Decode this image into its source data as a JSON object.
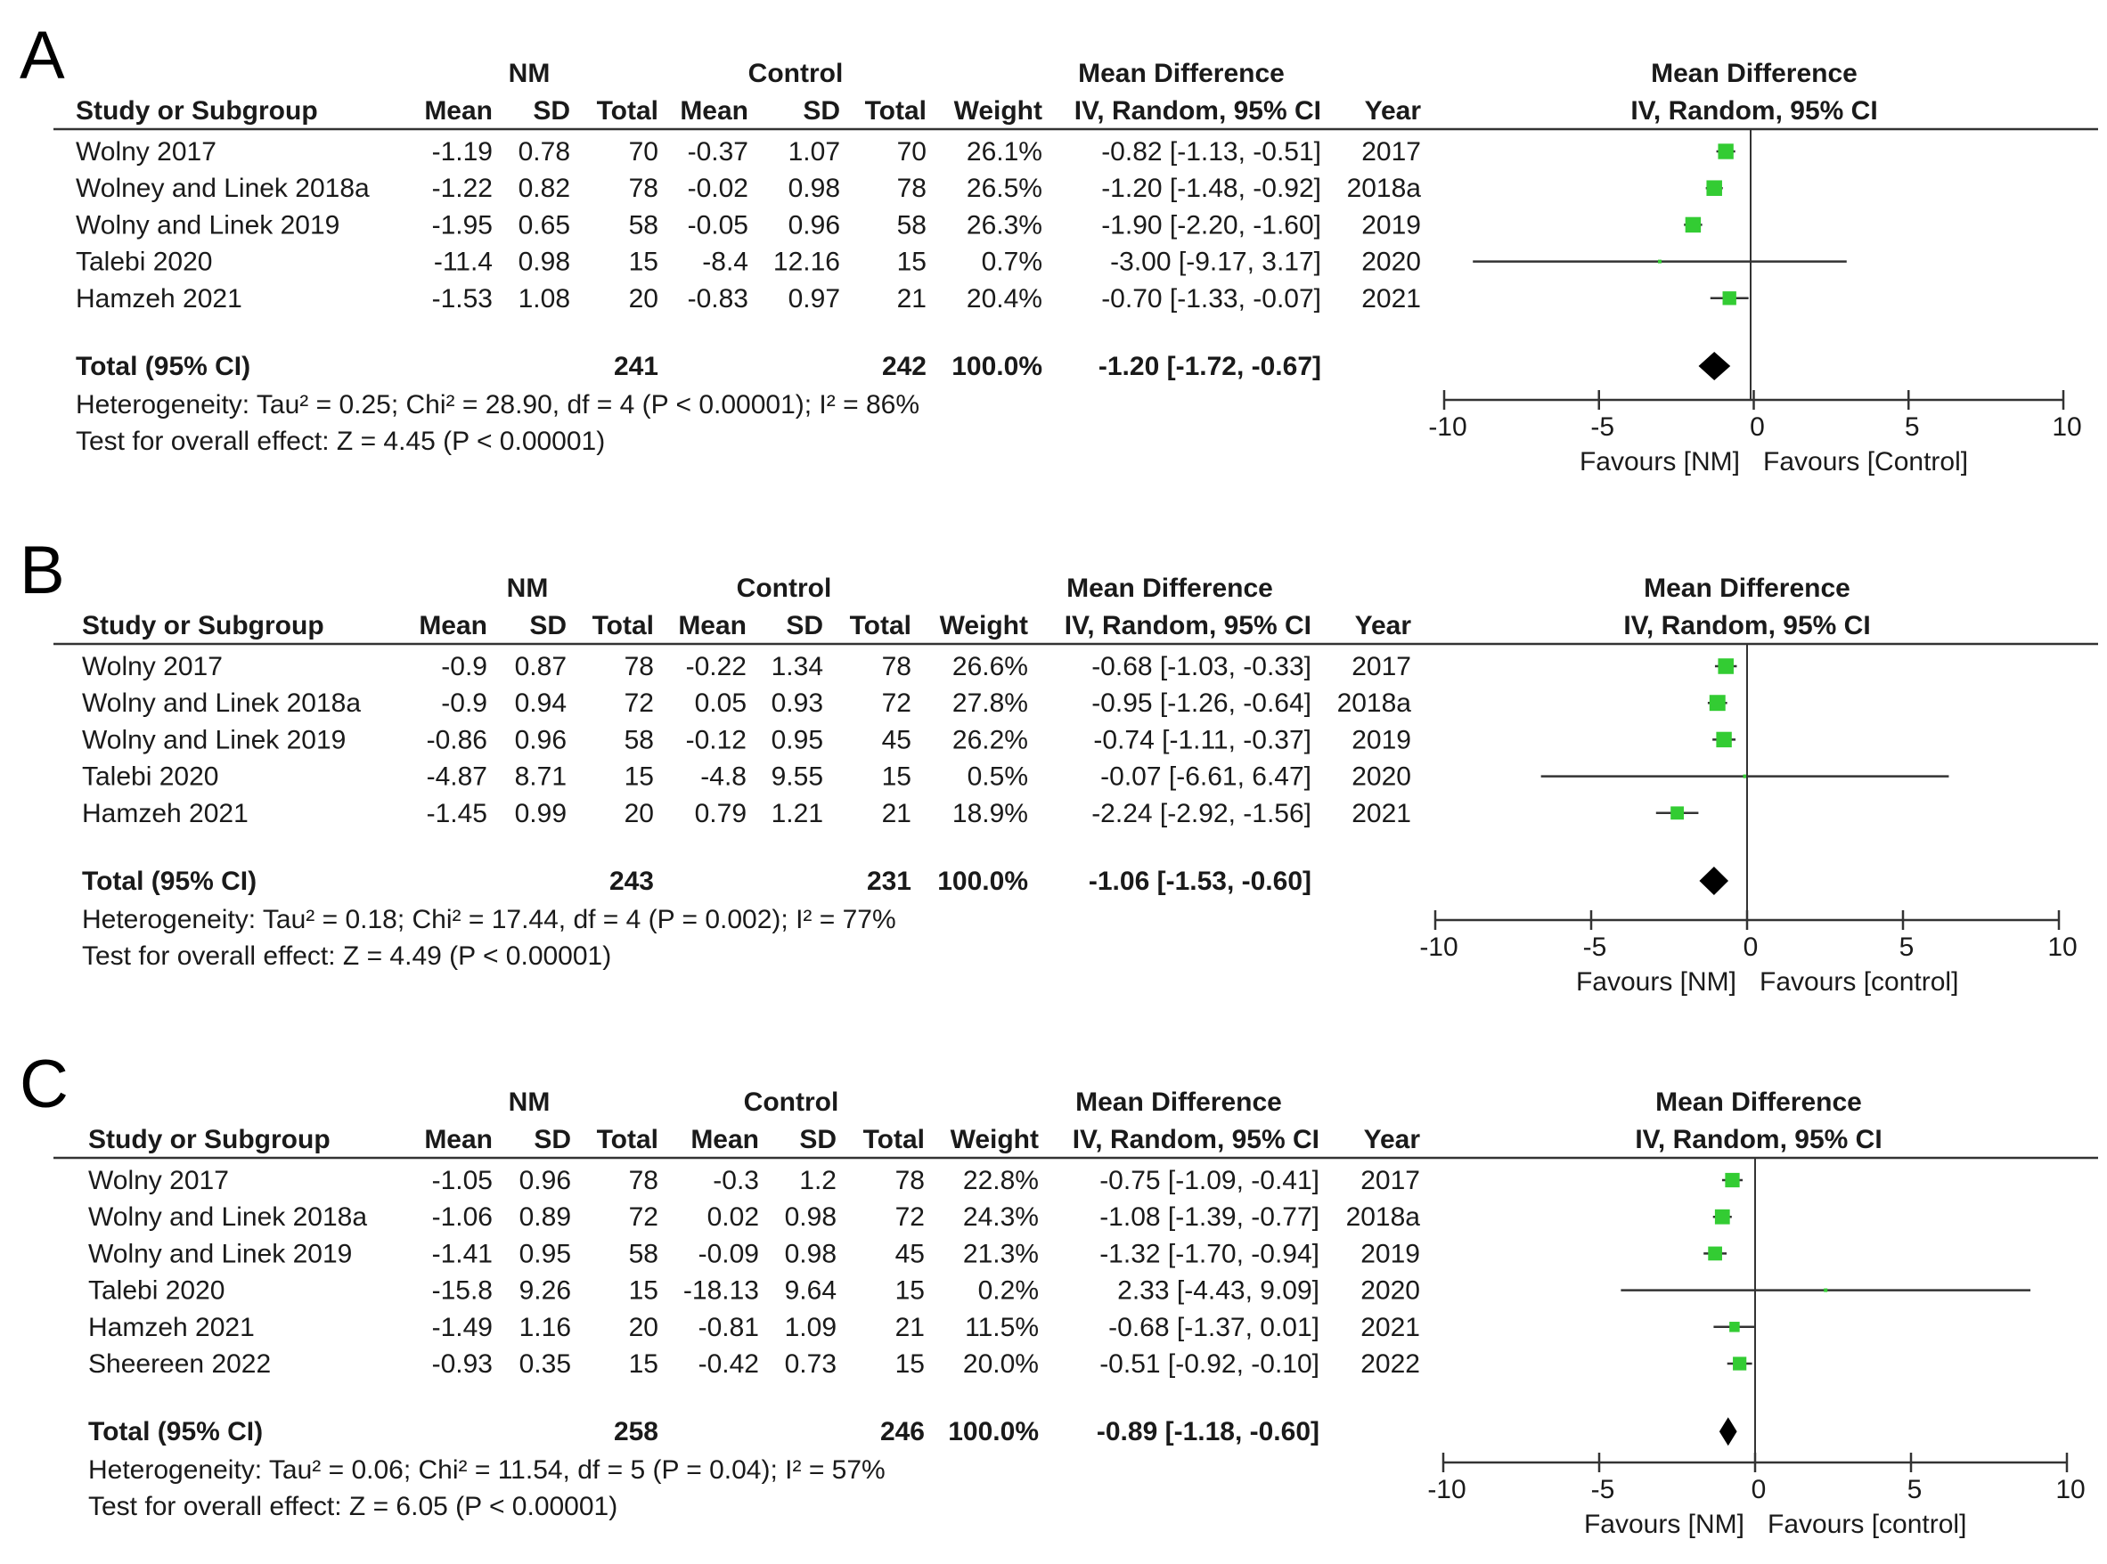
{
  "colors": {
    "point": "#33cc33",
    "diamond": "#000000",
    "line": "#333333",
    "text": "#1a1a1a"
  },
  "headers": {
    "nm": "NM",
    "control": "Control",
    "md_group": "Mean Difference",
    "study": "Study or Subgroup",
    "mean": "Mean",
    "sd": "SD",
    "total": "Total",
    "weight": "Weight",
    "md_ci": "IV, Random, 95% CI",
    "year": "Year",
    "plot_title": "Mean Difference",
    "plot_subtitle": "IV, Random, 95% CI",
    "total_label": "Total (95% CI)"
  },
  "chart_data": [
    {
      "type": "forest",
      "panel": "A",
      "columns": [
        "Study or Subgroup",
        "NM Mean",
        "NM SD",
        "NM Total",
        "Control Mean",
        "Control SD",
        "Control Total",
        "Weight",
        "Mean Difference IV, Random, 95% CI",
        "Year"
      ],
      "studies": [
        {
          "name": "Wolny 2017",
          "nm_mean": "-1.19",
          "nm_sd": "0.78",
          "nm_total": "70",
          "c_mean": "-0.37",
          "c_sd": "1.07",
          "c_total": "70",
          "weight": "26.1%",
          "ci_text": "-0.82 [-1.13, -0.51]",
          "year": "2017",
          "md": -0.82,
          "lo": -1.13,
          "hi": -0.51,
          "w": 26.1
        },
        {
          "name": "Wolney and Linek 2018a",
          "nm_mean": "-1.22",
          "nm_sd": "0.82",
          "nm_total": "78",
          "c_mean": "-0.02",
          "c_sd": "0.98",
          "c_total": "78",
          "weight": "26.5%",
          "ci_text": "-1.20 [-1.48, -0.92]",
          "year": "2018a",
          "md": -1.2,
          "lo": -1.48,
          "hi": -0.92,
          "w": 26.5
        },
        {
          "name": "Wolny and Linek 2019",
          "nm_mean": "-1.95",
          "nm_sd": "0.65",
          "nm_total": "58",
          "c_mean": "-0.05",
          "c_sd": "0.96",
          "c_total": "58",
          "weight": "26.3%",
          "ci_text": "-1.90 [-2.20, -1.60]",
          "year": "2019",
          "md": -1.9,
          "lo": -2.2,
          "hi": -1.6,
          "w": 26.3
        },
        {
          "name": "Talebi 2020",
          "nm_mean": "-11.4",
          "nm_sd": "0.98",
          "nm_total": "15",
          "c_mean": "-8.4",
          "c_sd": "12.16",
          "c_total": "15",
          "weight": "0.7%",
          "ci_text": "-3.00 [-9.17, 3.17]",
          "year": "2020",
          "md": -3.0,
          "lo": -9.17,
          "hi": 3.17,
          "w": 0.7
        },
        {
          "name": "Hamzeh 2021",
          "nm_mean": "-1.53",
          "nm_sd": "1.08",
          "nm_total": "20",
          "c_mean": "-0.83",
          "c_sd": "0.97",
          "c_total": "21",
          "weight": "20.4%",
          "ci_text": "-0.70 [-1.33, -0.07]",
          "year": "2021",
          "md": -0.7,
          "lo": -1.33,
          "hi": -0.07,
          "w": 20.4
        }
      ],
      "total": {
        "nm_total": "241",
        "c_total": "242",
        "weight": "100.0%",
        "ci_text": "-1.20 [-1.72, -0.67]",
        "md": -1.2,
        "lo": -1.72,
        "hi": -0.67
      },
      "heterogeneity": "Heterogeneity: Tau² = 0.25; Chi² = 28.90, df = 4 (P < 0.00001); I² = 86%",
      "overall_effect": "Test for overall effect: Z = 4.45 (P < 0.00001)",
      "xlim": [
        -10,
        10
      ],
      "xticks": [
        "-10",
        "-5",
        "0",
        "5",
        "10"
      ],
      "favours_left": "Favours [NM]",
      "favours_right": "Favours [Control]"
    },
    {
      "type": "forest",
      "panel": "B",
      "columns": [
        "Study or Subgroup",
        "NM Mean",
        "NM SD",
        "NM Total",
        "Control Mean",
        "Control SD",
        "Control Total",
        "Weight",
        "Mean Difference IV, Random, 95% CI",
        "Year"
      ],
      "studies": [
        {
          "name": "Wolny 2017",
          "nm_mean": "-0.9",
          "nm_sd": "0.87",
          "nm_total": "78",
          "c_mean": "-0.22",
          "c_sd": "1.34",
          "c_total": "78",
          "weight": "26.6%",
          "ci_text": "-0.68 [-1.03, -0.33]",
          "year": "2017",
          "md": -0.68,
          "lo": -1.03,
          "hi": -0.33,
          "w": 26.6
        },
        {
          "name": "Wolny and Linek 2018a",
          "nm_mean": "-0.9",
          "nm_sd": "0.94",
          "nm_total": "72",
          "c_mean": "0.05",
          "c_sd": "0.93",
          "c_total": "72",
          "weight": "27.8%",
          "ci_text": "-0.95 [-1.26, -0.64]",
          "year": "2018a",
          "md": -0.95,
          "lo": -1.26,
          "hi": -0.64,
          "w": 27.8
        },
        {
          "name": "Wolny and Linek 2019",
          "nm_mean": "-0.86",
          "nm_sd": "0.96",
          "nm_total": "58",
          "c_mean": "-0.12",
          "c_sd": "0.95",
          "c_total": "45",
          "weight": "26.2%",
          "ci_text": "-0.74 [-1.11, -0.37]",
          "year": "2019",
          "md": -0.74,
          "lo": -1.11,
          "hi": -0.37,
          "w": 26.2
        },
        {
          "name": "Talebi 2020",
          "nm_mean": "-4.87",
          "nm_sd": "8.71",
          "nm_total": "15",
          "c_mean": "-4.8",
          "c_sd": "9.55",
          "c_total": "15",
          "weight": "0.5%",
          "ci_text": "-0.07 [-6.61, 6.47]",
          "year": "2020",
          "md": -0.07,
          "lo": -6.61,
          "hi": 6.47,
          "w": 0.5
        },
        {
          "name": "Hamzeh 2021",
          "nm_mean": "-1.45",
          "nm_sd": "0.99",
          "nm_total": "20",
          "c_mean": "0.79",
          "c_sd": "1.21",
          "c_total": "21",
          "weight": "18.9%",
          "ci_text": "-2.24 [-2.92, -1.56]",
          "year": "2021",
          "md": -2.24,
          "lo": -2.92,
          "hi": -1.56,
          "w": 18.9
        }
      ],
      "total": {
        "nm_total": "243",
        "c_total": "231",
        "weight": "100.0%",
        "ci_text": "-1.06 [-1.53, -0.60]",
        "md": -1.06,
        "lo": -1.53,
        "hi": -0.6
      },
      "heterogeneity": "Heterogeneity: Tau² = 0.18; Chi² = 17.44, df = 4 (P = 0.002); I² = 77%",
      "overall_effect": "Test for overall effect: Z = 4.49 (P < 0.00001)",
      "xlim": [
        -10,
        10
      ],
      "xticks": [
        "-10",
        "-5",
        "0",
        "5",
        "10"
      ],
      "favours_left": "Favours [NM]",
      "favours_right": "Favours [control]"
    },
    {
      "type": "forest",
      "panel": "C",
      "columns": [
        "Study or Subgroup",
        "NM Mean",
        "NM SD",
        "NM Total",
        "Control Mean",
        "Control SD",
        "Control Total",
        "Weight",
        "Mean Difference IV, Random, 95% CI",
        "Year"
      ],
      "studies": [
        {
          "name": "Wolny 2017",
          "nm_mean": "-1.05",
          "nm_sd": "0.96",
          "nm_total": "78",
          "c_mean": "-0.3",
          "c_sd": "1.2",
          "c_total": "78",
          "weight": "22.8%",
          "ci_text": "-0.75 [-1.09, -0.41]",
          "year": "2017",
          "md": -0.75,
          "lo": -1.09,
          "hi": -0.41,
          "w": 22.8
        },
        {
          "name": "Wolny and Linek 2018a",
          "nm_mean": "-1.06",
          "nm_sd": "0.89",
          "nm_total": "72",
          "c_mean": "0.02",
          "c_sd": "0.98",
          "c_total": "72",
          "weight": "24.3%",
          "ci_text": "-1.08 [-1.39, -0.77]",
          "year": "2018a",
          "md": -1.08,
          "lo": -1.39,
          "hi": -0.77,
          "w": 24.3
        },
        {
          "name": "Wolny and Linek 2019",
          "nm_mean": "-1.41",
          "nm_sd": "0.95",
          "nm_total": "58",
          "c_mean": "-0.09",
          "c_sd": "0.98",
          "c_total": "45",
          "weight": "21.3%",
          "ci_text": "-1.32 [-1.70, -0.94]",
          "year": "2019",
          "md": -1.32,
          "lo": -1.7,
          "hi": -0.94,
          "w": 21.3
        },
        {
          "name": "Talebi 2020",
          "nm_mean": "-15.8",
          "nm_sd": "9.26",
          "nm_total": "15",
          "c_mean": "-18.13",
          "c_sd": "9.64",
          "c_total": "15",
          "weight": "0.2%",
          "ci_text": "2.33 [-4.43, 9.09]",
          "year": "2020",
          "md": 2.33,
          "lo": -4.43,
          "hi": 9.09,
          "w": 0.2
        },
        {
          "name": "Hamzeh 2021",
          "nm_mean": "-1.49",
          "nm_sd": "1.16",
          "nm_total": "20",
          "c_mean": "-0.81",
          "c_sd": "1.09",
          "c_total": "21",
          "weight": "11.5%",
          "ci_text": "-0.68 [-1.37, 0.01]",
          "year": "2021",
          "md": -0.68,
          "lo": -1.37,
          "hi": 0.01,
          "w": 11.5
        },
        {
          "name": "Sheereen 2022",
          "nm_mean": "-0.93",
          "nm_sd": "0.35",
          "nm_total": "15",
          "c_mean": "-0.42",
          "c_sd": "0.73",
          "c_total": "15",
          "weight": "20.0%",
          "ci_text": "-0.51 [-0.92, -0.10]",
          "year": "2022",
          "md": -0.51,
          "lo": -0.92,
          "hi": -0.1,
          "w": 20.0
        }
      ],
      "total": {
        "nm_total": "258",
        "c_total": "246",
        "weight": "100.0%",
        "ci_text": "-0.89 [-1.18, -0.60]",
        "md": -0.89,
        "lo": -1.18,
        "hi": -0.6
      },
      "heterogeneity": "Heterogeneity: Tau² = 0.06; Chi² = 11.54, df = 5 (P = 0.04); I² = 57%",
      "overall_effect": "Test for overall effect: Z = 6.05 (P < 0.00001)",
      "xlim": [
        -10,
        10
      ],
      "xticks": [
        "-10",
        "-5",
        "0",
        "5",
        "10"
      ],
      "favours_left": "Favours [NM]",
      "favours_right": "Favours [control]"
    }
  ]
}
